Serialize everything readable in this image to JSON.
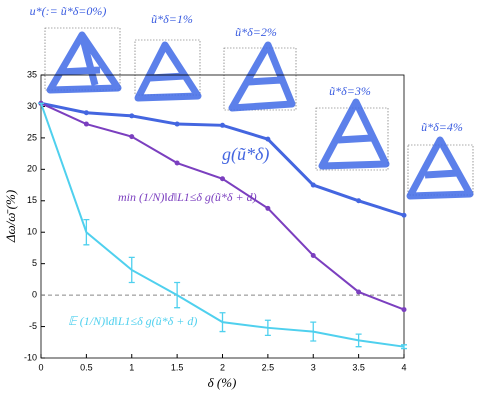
{
  "chart_data": {
    "type": "line",
    "x_label": "δ (%)",
    "y_label": "Δω/ω̄ (%)",
    "x": [
      0,
      0.5,
      1,
      1.5,
      2,
      2.5,
      3,
      3.5,
      4
    ],
    "series": [
      {
        "name": "g(ũ*δ)",
        "color": "#4466e0",
        "values": [
          30.5,
          29.0,
          28.5,
          27.2,
          27.0,
          24.8,
          17.5,
          15.0,
          12.7
        ]
      },
      {
        "name": "min (1/N)‖d‖L1≤δ g(ũ*δ + d)",
        "color": "#7b3fbf",
        "values": [
          30.5,
          27.2,
          25.2,
          21.0,
          18.5,
          13.8,
          6.3,
          0.5,
          -2.3
        ]
      },
      {
        "name": "𝔼 (1/N)‖d‖L1≤δ g(ũ*δ + d)",
        "color": "#4fd0ee",
        "values": [
          30.5,
          10,
          4,
          0,
          -4.3,
          -5.2,
          -5.8,
          -7.2,
          -8.2
        ],
        "errors": [
          0,
          2,
          2,
          2,
          1.5,
          1.2,
          1.5,
          1,
          0.3
        ]
      }
    ],
    "reference_line": 0,
    "insets": [
      "u*(:= ũ*δ=0%)",
      "ũ*δ=1%",
      "ũ*δ=2%",
      "ũ*δ=3%",
      "ũ*δ=4%"
    ],
    "xlim": [
      0,
      4
    ],
    "xticks": [
      0,
      0.5,
      1,
      1.5,
      2,
      2.5,
      3,
      3.5,
      4
    ],
    "ylim": [
      -10,
      35
    ],
    "yticks": [
      -10,
      -5,
      0,
      5,
      10,
      15,
      20,
      25,
      30,
      35
    ]
  }
}
